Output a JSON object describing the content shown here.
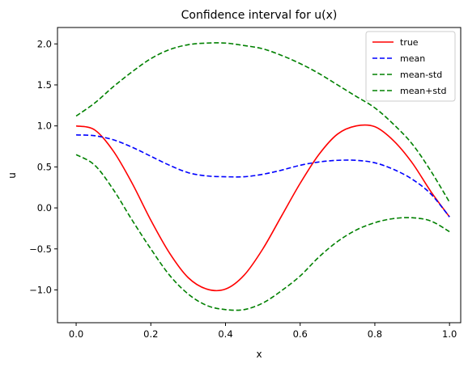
{
  "chart_data": {
    "type": "line",
    "title": "Confidence interval for u(x)",
    "xlabel": "x",
    "ylabel": "u",
    "xlim": [
      -0.05,
      1.03
    ],
    "ylim": [
      -1.4,
      2.2
    ],
    "x_ticks": [
      0.0,
      0.2,
      0.4,
      0.6,
      0.8,
      1.0
    ],
    "x_tick_labels": [
      "0.0",
      "0.2",
      "0.4",
      "0.6",
      "0.8",
      "1.0"
    ],
    "y_ticks": [
      -1.0,
      -0.5,
      0.0,
      0.5,
      1.0,
      1.5,
      2.0
    ],
    "y_tick_labels": [
      "−1.0",
      "−0.5",
      "0.0",
      "0.5",
      "1.0",
      "1.5",
      "2.0"
    ],
    "grid": false,
    "legend_position": "top-right",
    "x": [
      0.0,
      0.05,
      0.1,
      0.15,
      0.2,
      0.25,
      0.3,
      0.35,
      0.4,
      0.45,
      0.5,
      0.55,
      0.6,
      0.65,
      0.7,
      0.75,
      0.8,
      0.85,
      0.9,
      0.95,
      1.0
    ],
    "series": [
      {
        "name": "true",
        "color": "#ff0000",
        "dash": "solid",
        "values": [
          1.0,
          0.95,
          0.69,
          0.3,
          -0.15,
          -0.55,
          -0.85,
          -0.99,
          -0.99,
          -0.82,
          -0.5,
          -0.1,
          0.3,
          0.65,
          0.9,
          1.0,
          0.99,
          0.82,
          0.55,
          0.2,
          -0.11
        ]
      },
      {
        "name": "mean",
        "color": "#0000ff",
        "dash": "dashed",
        "values": [
          0.89,
          0.88,
          0.83,
          0.74,
          0.63,
          0.52,
          0.43,
          0.39,
          0.38,
          0.38,
          0.41,
          0.46,
          0.52,
          0.56,
          0.58,
          0.58,
          0.55,
          0.47,
          0.35,
          0.17,
          -0.11
        ]
      },
      {
        "name": "mean-std",
        "color": "#008000",
        "dash": "dashed",
        "values": [
          0.65,
          0.52,
          0.22,
          -0.15,
          -0.5,
          -0.82,
          -1.05,
          -1.19,
          -1.24,
          -1.24,
          -1.16,
          -1.01,
          -0.83,
          -0.6,
          -0.41,
          -0.27,
          -0.18,
          -0.13,
          -0.12,
          -0.16,
          -0.29
        ]
      },
      {
        "name": "mean+std",
        "color": "#008000",
        "dash": "dashed",
        "values": [
          1.12,
          1.28,
          1.48,
          1.66,
          1.82,
          1.93,
          1.99,
          2.01,
          2.01,
          1.98,
          1.94,
          1.86,
          1.76,
          1.64,
          1.5,
          1.36,
          1.22,
          1.02,
          0.78,
          0.45,
          0.07
        ]
      }
    ]
  }
}
